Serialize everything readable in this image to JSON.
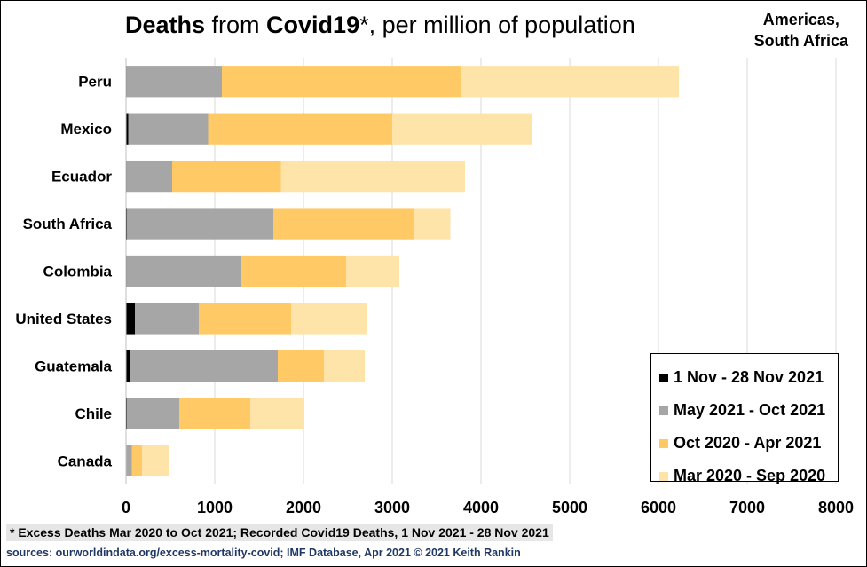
{
  "title": {
    "bold1": "Deaths",
    "text1": " from ",
    "bold2": "Covid19",
    "text2": "*, per million of population"
  },
  "corner_label": {
    "line1": "Americas,",
    "line2": "South Africa"
  },
  "footnote": "* Excess Deaths Mar 2020 to Oct 2021; Recorded Covid19 Deaths, 1 Nov 2021 - 28 Nov 2021",
  "sources": "sources:  ourworldindata.org/excess-mortality-covid;   IMF Database,  Apr 2021        © 2021 Keith Rankin",
  "chart_data": {
    "type": "bar",
    "orientation": "horizontal",
    "stacked": true,
    "categories": [
      "Peru",
      "Mexico",
      "Ecuador",
      "South Africa",
      "Colombia",
      "United States",
      "Guatemala",
      "Chile",
      "Canada"
    ],
    "series": [
      {
        "name": "1 Nov - 28 Nov 2021",
        "color": "#000000",
        "values": [
          8,
          25,
          8,
          12,
          8,
          100,
          40,
          10,
          5
        ]
      },
      {
        "name": "May 2021 - Oct 2021",
        "color": "#a6a6a6",
        "values": [
          1072,
          900,
          512,
          1648,
          1292,
          720,
          1670,
          590,
          60
        ]
      },
      {
        "name": "Oct 2020 - Apr 2021",
        "color": "#ffc966",
        "values": [
          2690,
          2075,
          1225,
          1580,
          1180,
          1040,
          520,
          800,
          115
        ]
      },
      {
        "name": "Mar 2020 - Sep 2020",
        "color": "#ffe4a9",
        "values": [
          2460,
          1580,
          2075,
          415,
          600,
          860,
          460,
          610,
          300
        ]
      }
    ],
    "xlim": [
      0,
      8000
    ],
    "xticks": [
      0,
      1000,
      2000,
      3000,
      4000,
      5000,
      6000,
      7000,
      8000
    ],
    "xlabel": "",
    "ylabel": "",
    "grid": "vertical",
    "legend_position": "bottom-right"
  }
}
